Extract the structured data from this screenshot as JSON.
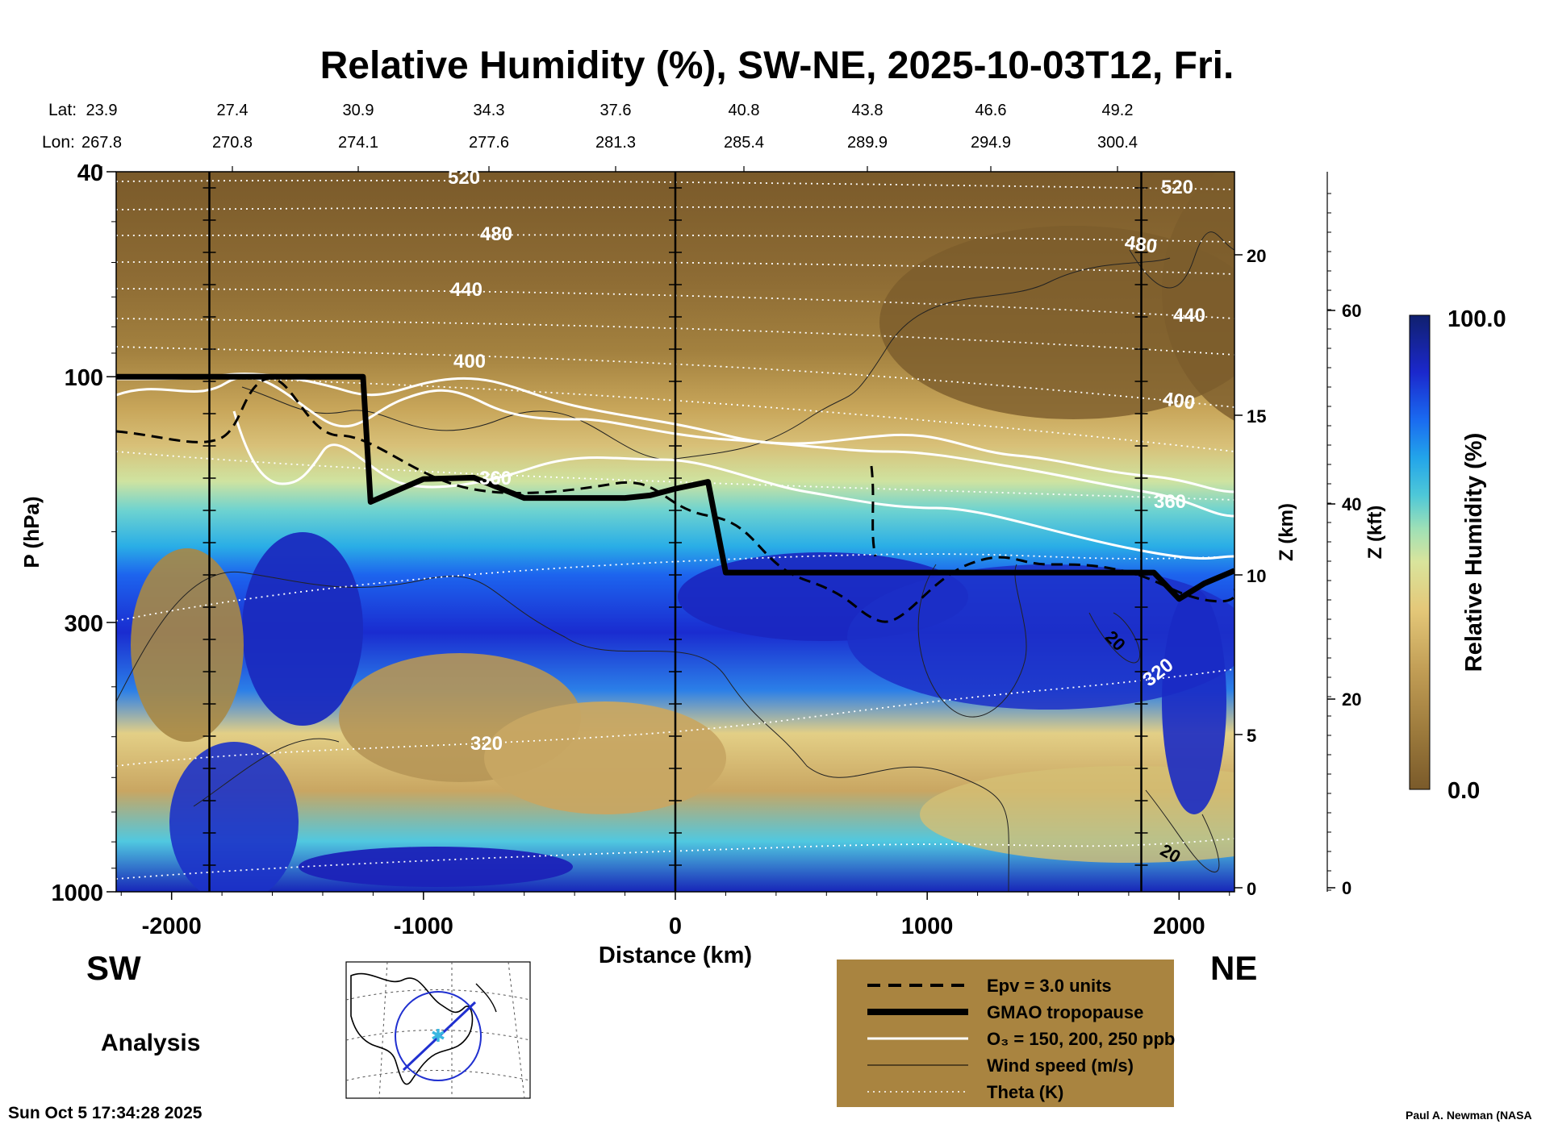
{
  "chart_data": {
    "type": "heatmap",
    "title": "Relative Humidity (%), SW-NE, 2025-10-03T12, Fri.",
    "xlabel": "Distance (km)",
    "ylabel": "P (hPa)",
    "y2label": "Z (km)",
    "y3label": "Z (kft)",
    "colorbar_label": "Relative Humidity (%)",
    "colorbar_max": "100.0",
    "colorbar_min": "0.0",
    "xlim": [
      -2220,
      2220
    ],
    "ylim": [
      1000,
      40
    ],
    "x_ticks": [
      "-2000",
      "-1000",
      "0",
      "1000",
      "2000"
    ],
    "y_ticks": [
      "40",
      "100",
      "300",
      "1000"
    ],
    "z_km_ticks": [
      "20",
      "15",
      "10",
      "5",
      "0"
    ],
    "z_kft_ticks": [
      "60",
      "40",
      "20",
      "0"
    ],
    "lat_label": "Lat:",
    "lon_label": "Lon:",
    "lats": [
      "23.9",
      "27.4",
      "30.9",
      "34.3",
      "37.6",
      "40.8",
      "43.8",
      "46.6",
      "49.2"
    ],
    "lons": [
      "267.8",
      "270.8",
      "274.1",
      "277.6",
      "281.3",
      "285.4",
      "289.9",
      "294.9",
      "300.4"
    ],
    "left_dir": "SW",
    "right_dir": "NE",
    "analysis_label": "Analysis",
    "timestamp": "Sun Oct  5 17:34:28 2025",
    "credit": "Paul A. Newman (NASA",
    "theta_labels": [
      "520",
      "480",
      "440",
      "400",
      "360",
      "320",
      "520",
      "480",
      "440",
      "400",
      "360",
      "320"
    ],
    "wind_labels": [
      "20",
      "20"
    ],
    "tropopause": [
      {
        "x": -2220,
        "p": 100
      },
      {
        "x": -1850,
        "p": 100
      },
      {
        "x": -1240,
        "p": 100
      },
      {
        "x": -1210,
        "p": 175
      },
      {
        "x": -1000,
        "p": 158
      },
      {
        "x": -800,
        "p": 157
      },
      {
        "x": -600,
        "p": 172
      },
      {
        "x": -200,
        "p": 172
      },
      {
        "x": -100,
        "p": 170
      },
      {
        "x": 0,
        "p": 165
      },
      {
        "x": 130,
        "p": 160
      },
      {
        "x": 200,
        "p": 240
      },
      {
        "x": 400,
        "p": 240
      },
      {
        "x": 1300,
        "p": 240
      },
      {
        "x": 1900,
        "p": 240
      },
      {
        "x": 2000,
        "p": 270
      },
      {
        "x": 2100,
        "p": 252
      },
      {
        "x": 2220,
        "p": 238
      }
    ],
    "colorscale": [
      "#7a5a2a",
      "#9c7a3c",
      "#bd9a52",
      "#d8b868",
      "#efd98c",
      "#c9e49a",
      "#73d5c6",
      "#2ab4e0",
      "#1a6ff0",
      "#1b20c8",
      "#111a72"
    ],
    "legend": [
      {
        "label": "Epv = 3.0 units",
        "style": "dashed"
      },
      {
        "label": "GMAO tropopause",
        "style": "thick"
      },
      {
        "label": "O₃ = 150, 200, 250 ppb",
        "style": "white"
      },
      {
        "label": "Wind speed (m/s)",
        "style": "thin"
      },
      {
        "label": "Theta (K)",
        "style": "dotted"
      }
    ],
    "legend_bg": "#a98440"
  }
}
